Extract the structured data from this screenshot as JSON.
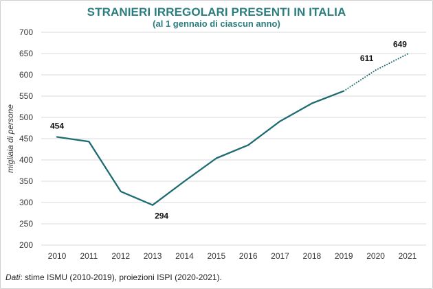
{
  "chart_data": {
    "type": "line",
    "title": "STRANIERI IRREGOLARI PRESENTI IN ITALIA",
    "subtitle": "(al 1 gennaio di ciascun anno)",
    "xlabel": "",
    "ylabel": "migliaia di persone",
    "x": [
      "2010",
      "2011",
      "2012",
      "2013",
      "2014",
      "2015",
      "2016",
      "2017",
      "2018",
      "2019",
      "2020",
      "2021"
    ],
    "series": [
      {
        "name": "stime ISMU",
        "style": "solid",
        "color": "#1e6b72",
        "values": [
          454,
          443,
          326,
          294,
          350,
          404,
          435,
          491,
          533,
          562,
          null,
          null
        ]
      },
      {
        "name": "proiezioni ISPI",
        "style": "dotted",
        "color": "#1e6b72",
        "values": [
          null,
          null,
          null,
          null,
          null,
          null,
          null,
          null,
          null,
          562,
          611,
          649
        ]
      }
    ],
    "ylim": [
      200,
      700
    ],
    "yticks": [
      200,
      250,
      300,
      350,
      400,
      450,
      500,
      550,
      600,
      650,
      700
    ],
    "grid": true,
    "annotations": [
      {
        "x": "2010",
        "y": 454,
        "text": "454"
      },
      {
        "x": "2013",
        "y": 294,
        "text": "294"
      },
      {
        "x": "2020",
        "y": 611,
        "text": "611"
      },
      {
        "x": "2021",
        "y": 649,
        "text": "649"
      }
    ]
  },
  "source": {
    "label": "Dati",
    "text": ": stime ISMU (2010-2019), proiezioni ISPI (2020-2021)."
  }
}
